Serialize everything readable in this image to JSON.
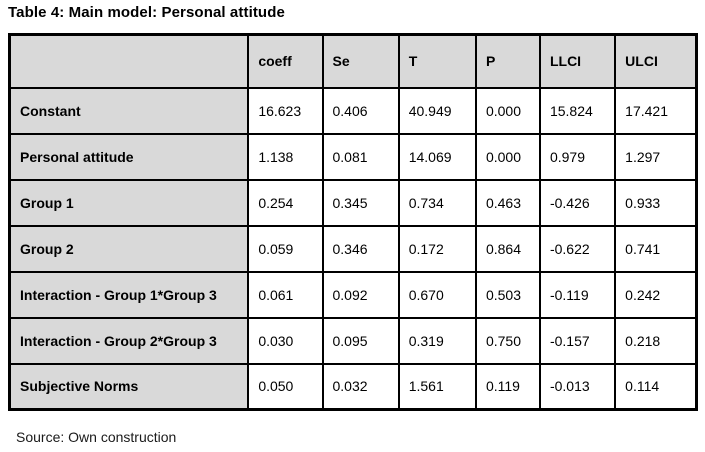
{
  "page": {
    "title": "Table 4: Main model: Personal attitude",
    "source_note": "Source: Own construction"
  },
  "colors": {
    "header_background": "#d9d9d9",
    "cell_background": "#ffffff",
    "border": "#000000",
    "text": "#000000"
  },
  "table": {
    "columns": [
      "",
      "coeff",
      "Se",
      "T",
      "P",
      "LLCI",
      "ULCI"
    ],
    "rows": [
      {
        "label": "Constant",
        "values": [
          "16.623",
          "0.406",
          "40.949",
          "0.000",
          "15.824",
          "17.421"
        ]
      },
      {
        "label": "Personal attitude",
        "values": [
          "1.138",
          "0.081",
          "14.069",
          "0.000",
          "0.979",
          "1.297"
        ]
      },
      {
        "label": "Group 1",
        "values": [
          "0.254",
          "0.345",
          "0.734",
          "0.463",
          "-0.426",
          "0.933"
        ]
      },
      {
        "label": "Group 2",
        "values": [
          "0.059",
          "0.346",
          "0.172",
          "0.864",
          "-0.622",
          "0.741"
        ]
      },
      {
        "label": "Interaction - Group 1*Group 3",
        "values": [
          "0.061",
          "0.092",
          "0.670",
          "0.503",
          "-0.119",
          "0.242"
        ]
      },
      {
        "label": "Interaction - Group 2*Group 3",
        "values": [
          "0.030",
          "0.095",
          "0.319",
          "0.750",
          "-0.157",
          "0.218"
        ]
      },
      {
        "label": "Subjective Norms",
        "values": [
          "0.050",
          "0.032",
          "1.561",
          "0.119",
          "-0.013",
          "0.114"
        ]
      }
    ]
  }
}
